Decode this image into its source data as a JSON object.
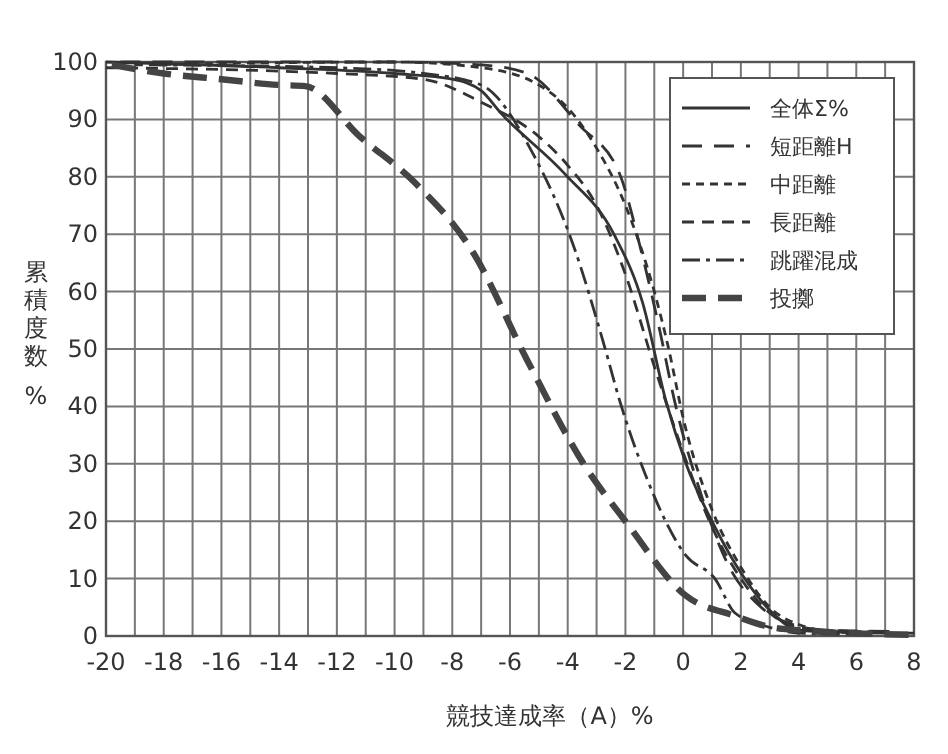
{
  "chart_data": {
    "type": "line",
    "xlabel": "競技達成率（A）%",
    "ylabel": "累積度数%",
    "xlim": [
      -20,
      8
    ],
    "ylim": [
      0,
      100
    ],
    "xticks": [
      -20,
      {
        "value": -19,
        "label": null
      },
      -18,
      {
        "value": -17,
        "label": null
      },
      -16,
      {
        "value": -15,
        "label": null
      },
      -14,
      {
        "value": -13,
        "label": null
      },
      -12,
      {
        "value": -11,
        "label": null
      },
      -10,
      {
        "value": -9,
        "label": null
      },
      -8,
      {
        "value": -7,
        "label": null
      },
      -6,
      {
        "value": -5,
        "label": null
      },
      -4,
      {
        "value": -3,
        "label": null
      },
      -2,
      {
        "value": -1,
        "label": null
      },
      0,
      {
        "value": 1,
        "label": null
      },
      2,
      {
        "value": 3,
        "label": null
      },
      4,
      {
        "value": 5,
        "label": null
      },
      6,
      {
        "value": 7,
        "label": null
      },
      8
    ],
    "yticks": [
      0,
      10,
      20,
      30,
      40,
      50,
      60,
      70,
      80,
      90,
      100
    ],
    "grid": true,
    "legend": "top right",
    "marker": "none",
    "series": [
      {
        "name": "全体Σ%",
        "color": "#333333",
        "line_style": "solid",
        "x": [
          -20,
          -14,
          -10,
          -8,
          -7,
          -6.3,
          -4.1,
          -2.4,
          -1.4,
          -0.6,
          0.1,
          1.1,
          2,
          3.1,
          4,
          6,
          8
        ],
        "values": [
          100,
          99,
          98,
          97,
          95,
          91,
          80.5,
          70,
          58,
          41,
          30,
          19,
          11,
          4,
          1,
          0.6,
          0.5
        ]
      },
      {
        "name": "短距離H",
        "color": "#333333",
        "line_style": "dashed",
        "x": [
          -19.5,
          -10,
          -7,
          -5.4,
          -3.6,
          -2.2,
          -1.5,
          -0.8,
          -0.3,
          0.6,
          1.5,
          2.7,
          3.8,
          5,
          7.5
        ],
        "values": [
          100,
          100,
          99.5,
          98,
          89,
          80.5,
          68,
          53,
          41,
          25,
          13,
          5,
          2,
          1,
          0.8
        ]
      },
      {
        "name": "中距離",
        "color": "#333333",
        "line_style": "dotted",
        "x": [
          -19,
          -10,
          -7,
          -5,
          -4,
          -3,
          -2,
          -1,
          -0.5,
          0,
          1,
          2,
          3,
          4,
          5,
          7
        ],
        "values": [
          99.5,
          100,
          99,
          96,
          92,
          85,
          75,
          60,
          50,
          38,
          22,
          12,
          5,
          2,
          1,
          0.7
        ]
      },
      {
        "name": "長距離",
        "color": "#333333",
        "line_style": "dashed",
        "x": [
          -20,
          -12,
          -9,
          -7,
          -5,
          -4,
          -3,
          -2,
          -1,
          0,
          1,
          2,
          3,
          4,
          6.5
        ],
        "values": [
          99,
          98,
          97,
          93,
          87,
          82,
          75,
          63,
          47,
          32,
          19,
          10,
          4,
          1.5,
          0.4
        ]
      },
      {
        "name": "跳躍混成",
        "color": "#333333",
        "line_style": "dashdot",
        "x": [
          -18.5,
          -12,
          -9,
          -7,
          -5.2,
          -3.8,
          -2.7,
          -2.2,
          -1.3,
          0.1,
          1.1,
          1.8,
          3,
          4,
          6
        ],
        "values": [
          99.5,
          99,
          98,
          96,
          84,
          68,
          50,
          41,
          28,
          14,
          10,
          4,
          1.5,
          0.5,
          0.3
        ]
      },
      {
        "name": "投擲",
        "color": "#444444",
        "line_style": "dashed",
        "x": [
          -19.8,
          -18,
          -16,
          -14,
          -13.1,
          -11.2,
          -9.3,
          -7.3,
          -5.4,
          -3.4,
          -2,
          0.1,
          1.8,
          2.9,
          4,
          8
        ],
        "values": [
          99.5,
          98,
          97,
          96,
          95.8,
          87,
          79,
          67,
          48,
          29.6,
          20,
          7,
          3.5,
          1.7,
          1,
          0.2
        ]
      }
    ]
  }
}
